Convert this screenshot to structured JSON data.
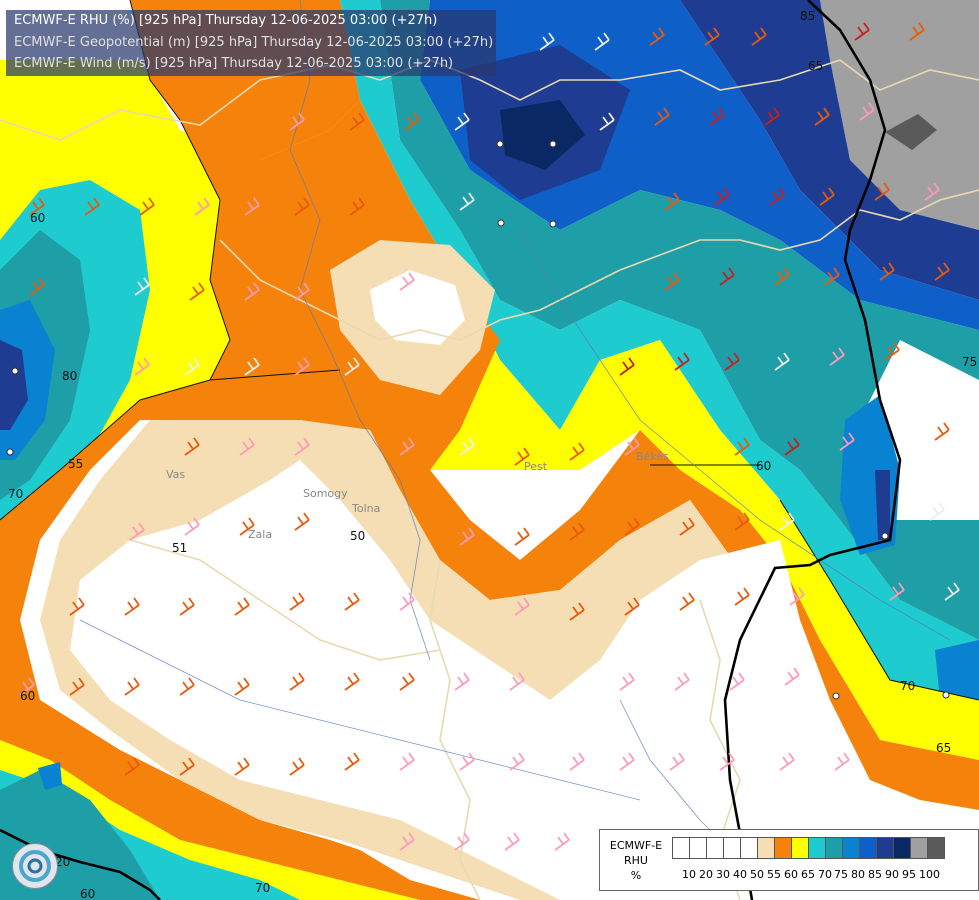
{
  "header": {
    "line1": "ECMWF-E RHU (%) [925 hPa] Thursday 12-06-2025 03:00 (+27h)",
    "line2": "ECMWF-E Geopotential (m) [925 hPa] Thursday 12-06-2025 03:00 (+27h)",
    "line3": "ECMWF-E Wind (m/s) [925 hPa] Thursday 12-06-2025 03:00 (+27h)"
  },
  "legend": {
    "title_lines": [
      "ECMWF-E",
      "RHU",
      "%"
    ],
    "ticks": [
      "10",
      "20",
      "30",
      "40",
      "50",
      "55",
      "60",
      "65",
      "70",
      "75",
      "80",
      "85",
      "90",
      "95",
      "100"
    ],
    "colors": [
      "#ffffff",
      "#ffffff",
      "#ffffff",
      "#ffffff",
      "#ffffff",
      "#f5deb3",
      "#f5820a",
      "#ffff00",
      "#1ecbcf",
      "#1e9fa8",
      "#0a82d2",
      "#0f5fc8",
      "#1e3c91",
      "#0a2864",
      "#a0a0a0",
      "#5a5a5a"
    ]
  },
  "contour_labels": [
    "60",
    "55",
    "50",
    "51",
    "60",
    "65",
    "70",
    "75",
    "80",
    "85",
    "70",
    "65",
    "70",
    "20",
    "60",
    "60"
  ],
  "place_labels": [
    "Pest",
    "Békés",
    "Vas",
    "Somogy",
    "Zala",
    "Tolna"
  ],
  "logo": {
    "icon": "ogimet-logo-icon"
  }
}
